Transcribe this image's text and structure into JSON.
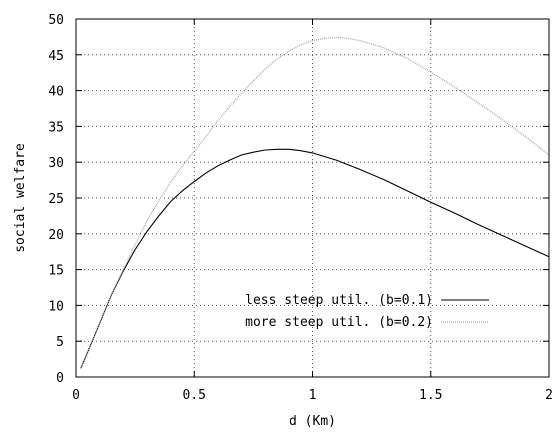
{
  "chart_data": {
    "type": "line",
    "title": "",
    "xlabel": "d (Km)",
    "ylabel": "social welfare",
    "xlim": [
      0,
      2
    ],
    "ylim": [
      0,
      50
    ],
    "xticks": [
      0,
      0.5,
      1,
      1.5,
      2
    ],
    "xtick_labels": [
      "0",
      "0.5",
      "1",
      "1.5",
      "2"
    ],
    "yticks": [
      0,
      5,
      10,
      15,
      20,
      25,
      30,
      35,
      40,
      45,
      50
    ],
    "ytick_labels": [
      "0",
      "5",
      "10",
      "15",
      "20",
      "25",
      "30",
      "35",
      "40",
      "45",
      "50"
    ],
    "grid": true,
    "legend_position": "bottom-right",
    "series": [
      {
        "name": "less steep util. (b=0.1)",
        "color": "#000000",
        "style": "solid",
        "x": [
          0.02,
          0.05,
          0.1,
          0.15,
          0.2,
          0.25,
          0.3,
          0.35,
          0.4,
          0.45,
          0.5,
          0.55,
          0.6,
          0.65,
          0.7,
          0.75,
          0.8,
          0.85,
          0.9,
          0.95,
          1.0,
          1.1,
          1.2,
          1.3,
          1.4,
          1.5,
          1.6,
          1.7,
          1.8,
          1.9,
          2.0
        ],
        "y": [
          1.2,
          3.5,
          7.5,
          11.5,
          14.8,
          17.8,
          20.3,
          22.5,
          24.5,
          26.0,
          27.3,
          28.5,
          29.5,
          30.3,
          31.0,
          31.4,
          31.7,
          31.8,
          31.8,
          31.6,
          31.3,
          30.3,
          29.0,
          27.6,
          26.0,
          24.4,
          22.9,
          21.3,
          19.8,
          18.3,
          16.8
        ]
      },
      {
        "name": "more steep util. (b=0.2)",
        "color": "#a8a8a8",
        "style": "dotted",
        "x": [
          0.02,
          0.05,
          0.1,
          0.15,
          0.2,
          0.25,
          0.3,
          0.35,
          0.4,
          0.45,
          0.5,
          0.55,
          0.6,
          0.65,
          0.7,
          0.75,
          0.8,
          0.85,
          0.9,
          0.95,
          1.0,
          1.05,
          1.1,
          1.15,
          1.2,
          1.3,
          1.4,
          1.5,
          1.6,
          1.7,
          1.8,
          1.9,
          2.0
        ],
        "y": [
          1.2,
          3.5,
          7.5,
          11.5,
          15.0,
          18.5,
          21.8,
          24.6,
          27.2,
          29.5,
          31.5,
          33.6,
          35.8,
          37.8,
          39.6,
          41.4,
          43.0,
          44.4,
          45.5,
          46.4,
          47.0,
          47.3,
          47.4,
          47.3,
          47.0,
          46.0,
          44.5,
          42.6,
          40.5,
          38.3,
          36.0,
          33.6,
          31.0
        ]
      }
    ]
  }
}
